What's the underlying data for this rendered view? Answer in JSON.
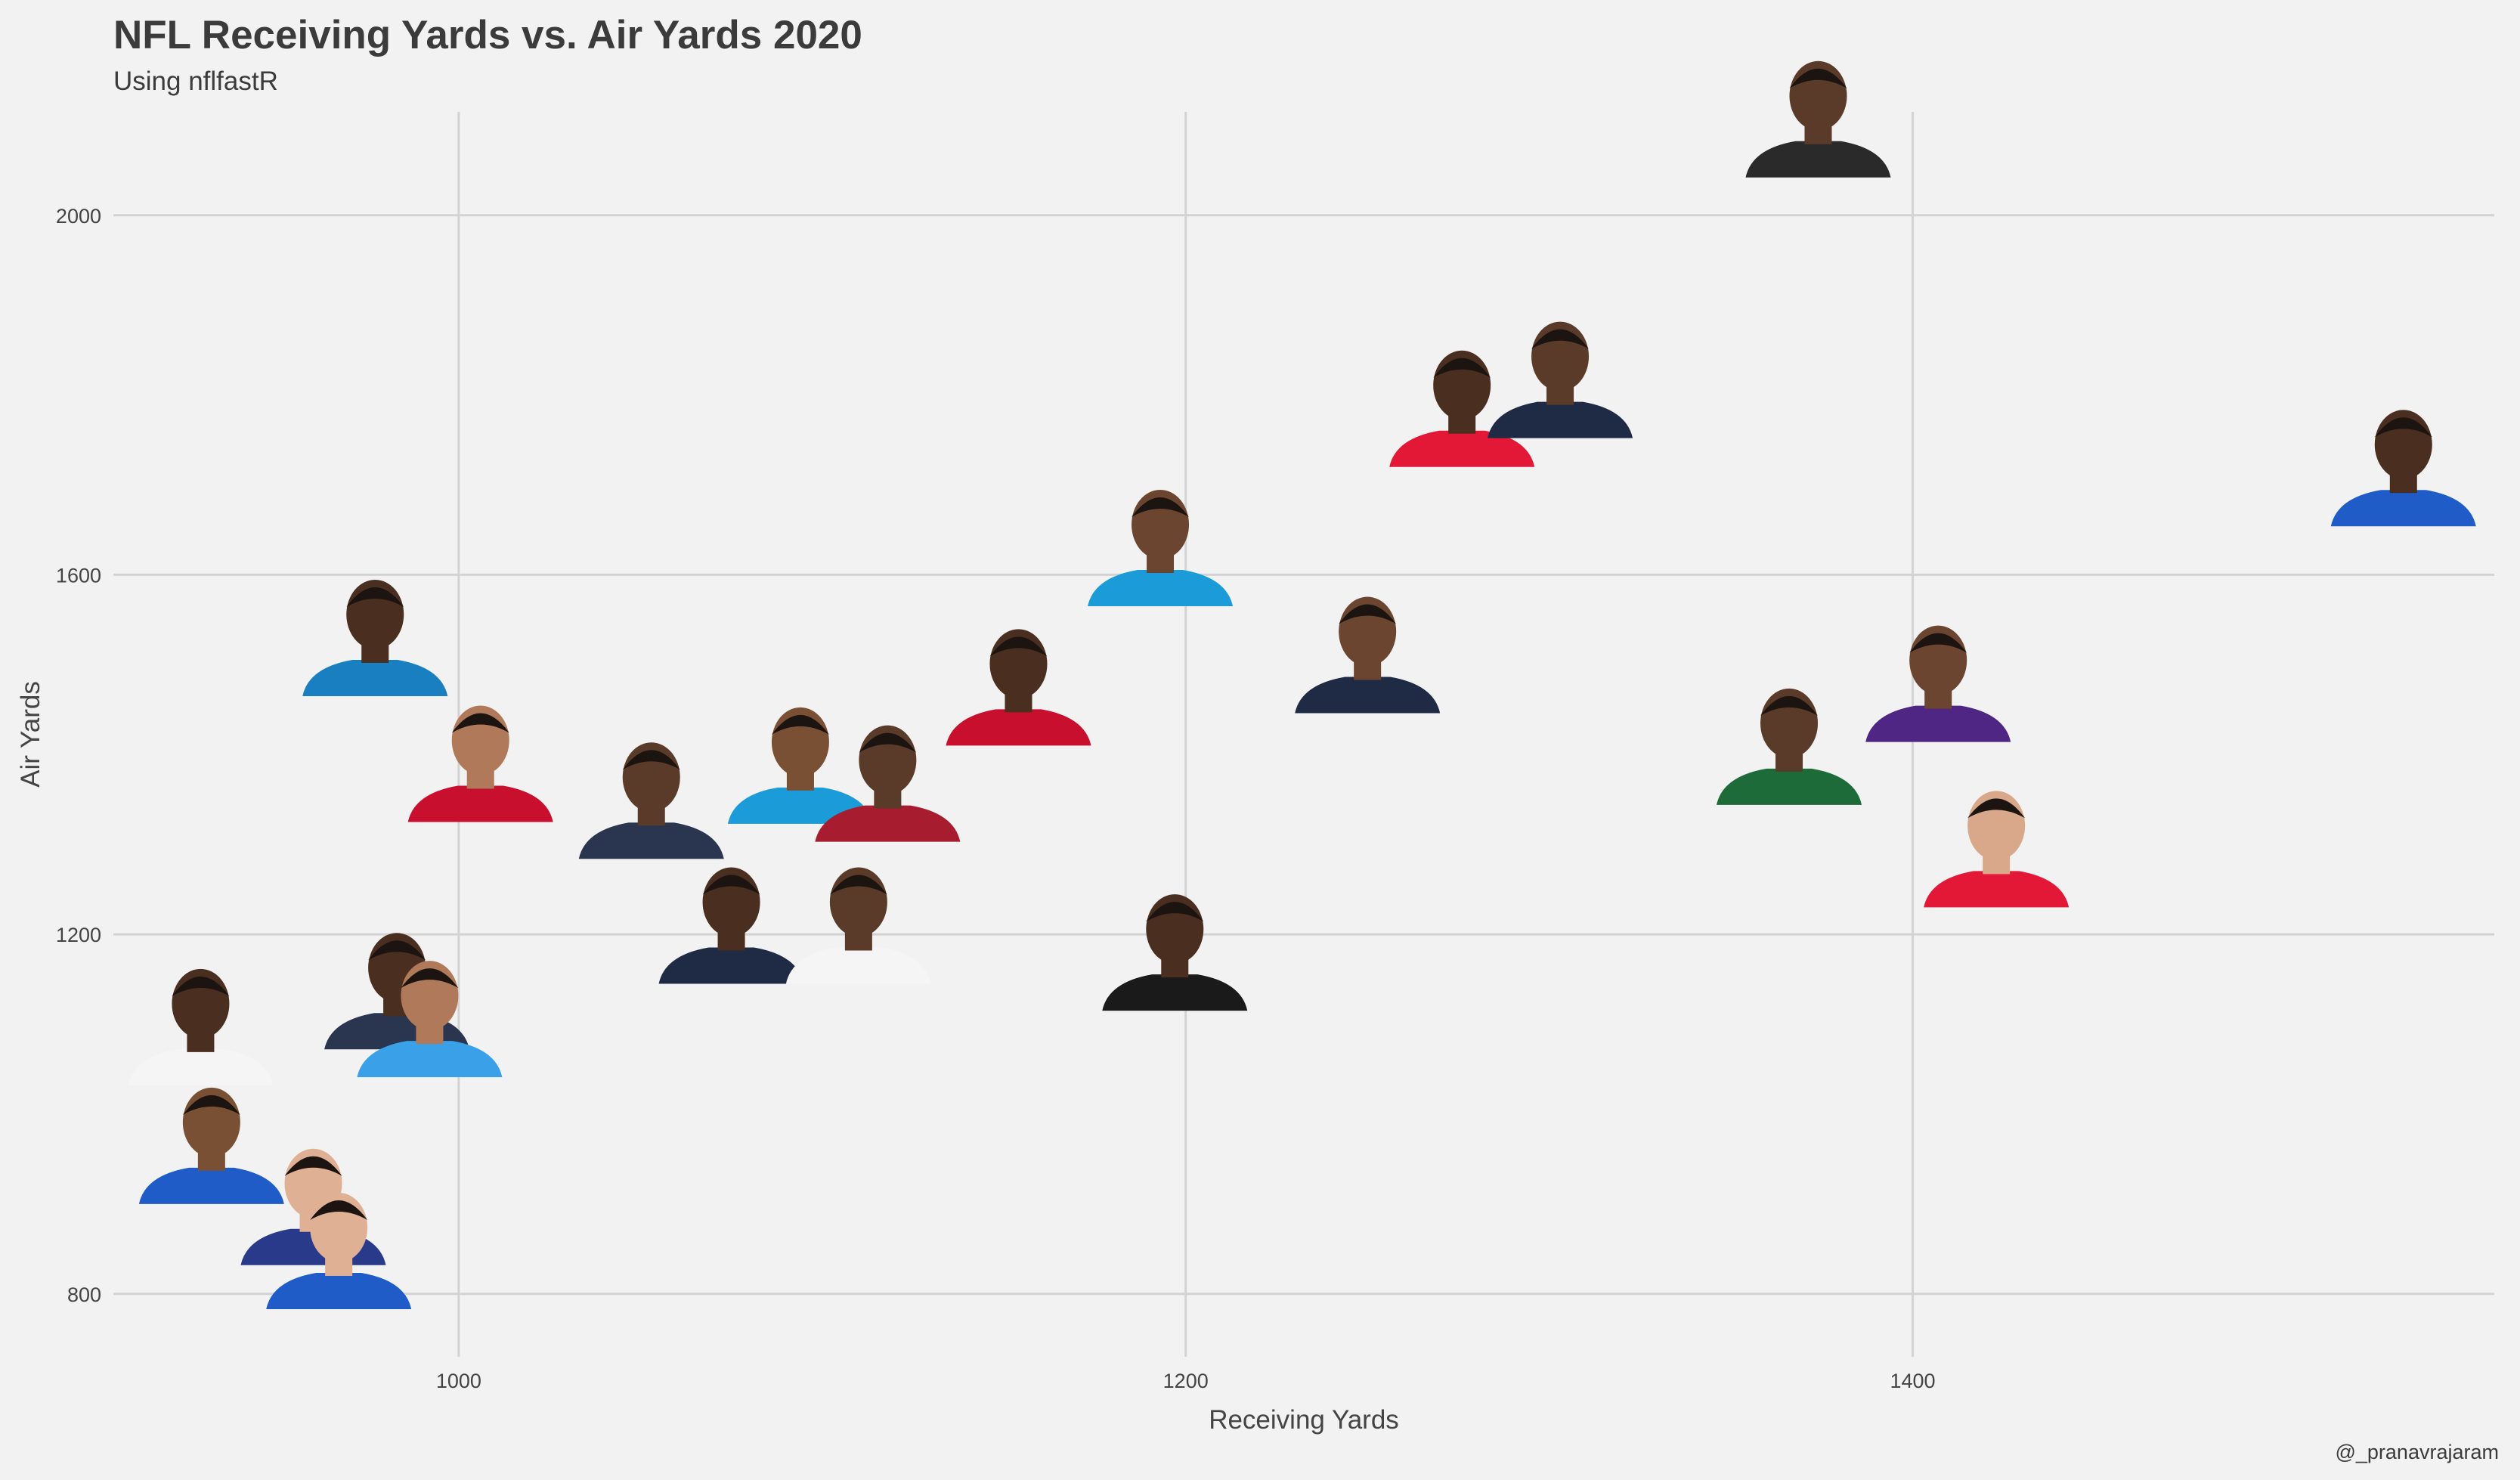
{
  "header": {
    "title": "NFL Receiving Yards vs. Air Yards 2020",
    "subtitle": "Using nflfastR"
  },
  "caption": "@_pranavrajaram",
  "chart_data": {
    "type": "scatter",
    "title": "NFL Receiving Yards vs. Air Yards 2020",
    "subtitle": "Using nflfastR",
    "xlabel": "Receiving Yards",
    "ylabel": "Air Yards",
    "xlim": [
      905,
      1560
    ],
    "ylim": [
      730,
      2115
    ],
    "xticks": [
      1000,
      1200,
      1400
    ],
    "yticks": [
      800,
      1200,
      1600,
      2000
    ],
    "grid": true,
    "marker": "player headshot",
    "points": [
      {
        "x": 1374,
        "y": 2042,
        "jersey": "#2a2a2a",
        "skin": "#5a3a28"
      },
      {
        "x": 1276,
        "y": 1720,
        "jersey": "#e31837",
        "skin": "#4a2e20"
      },
      {
        "x": 1303,
        "y": 1752,
        "jersey": "#1f2a44",
        "skin": "#5a3a28"
      },
      {
        "x": 1535,
        "y": 1654,
        "jersey": "#1f5cc8",
        "skin": "#4a2e20"
      },
      {
        "x": 1193,
        "y": 1565,
        "jersey": "#1b9bd8",
        "skin": "#6b4530"
      },
      {
        "x": 1250,
        "y": 1446,
        "jersey": "#1f2a44",
        "skin": "#6b4530"
      },
      {
        "x": 1154,
        "y": 1410,
        "jersey": "#c8102e",
        "skin": "#4a2e20"
      },
      {
        "x": 1407,
        "y": 1414,
        "jersey": "#4f2683",
        "skin": "#6b4530"
      },
      {
        "x": 1366,
        "y": 1344,
        "jersey": "#1e6b3a",
        "skin": "#5a3a28"
      },
      {
        "x": 1423,
        "y": 1230,
        "jersey": "#e31837",
        "skin": "#d9a78a"
      },
      {
        "x": 977,
        "y": 1465,
        "jersey": "#1a7fc1",
        "skin": "#4a2e20"
      },
      {
        "x": 1006,
        "y": 1325,
        "jersey": "#c8102e",
        "skin": "#b07a5a"
      },
      {
        "x": 1053,
        "y": 1284,
        "jersey": "#2a3550",
        "skin": "#5a3a28"
      },
      {
        "x": 1094,
        "y": 1323,
        "jersey": "#1b9bd8",
        "skin": "#7a5035"
      },
      {
        "x": 1118,
        "y": 1303,
        "jersey": "#a81c2f",
        "skin": "#5a3a28"
      },
      {
        "x": 1075,
        "y": 1145,
        "jersey": "#1f2a44",
        "skin": "#4a2e20"
      },
      {
        "x": 1110,
        "y": 1145,
        "jersey": "#f5f5f5",
        "skin": "#5a3a28"
      },
      {
        "x": 1197,
        "y": 1115,
        "jersey": "#1a1a1a",
        "skin": "#4a2e20"
      },
      {
        "x": 983,
        "y": 1072,
        "jersey": "#2a3550",
        "skin": "#4a2e20"
      },
      {
        "x": 992,
        "y": 1041,
        "jersey": "#3aa0e8",
        "skin": "#b07a5a"
      },
      {
        "x": 929,
        "y": 1032,
        "jersey": "#f5f5f5",
        "skin": "#4a2e20"
      },
      {
        "x": 932,
        "y": 900,
        "jersey": "#1f5cc8",
        "skin": "#7a5035"
      },
      {
        "x": 960,
        "y": 832,
        "jersey": "#2a3a8a",
        "skin": "#e0b094"
      },
      {
        "x": 967,
        "y": 783,
        "jersey": "#1f5cc8",
        "skin": "#e0b094"
      }
    ]
  },
  "colors": {
    "background": "#f2f2f2",
    "grid": "#d3d3d3",
    "text": "#3b3b3b"
  }
}
